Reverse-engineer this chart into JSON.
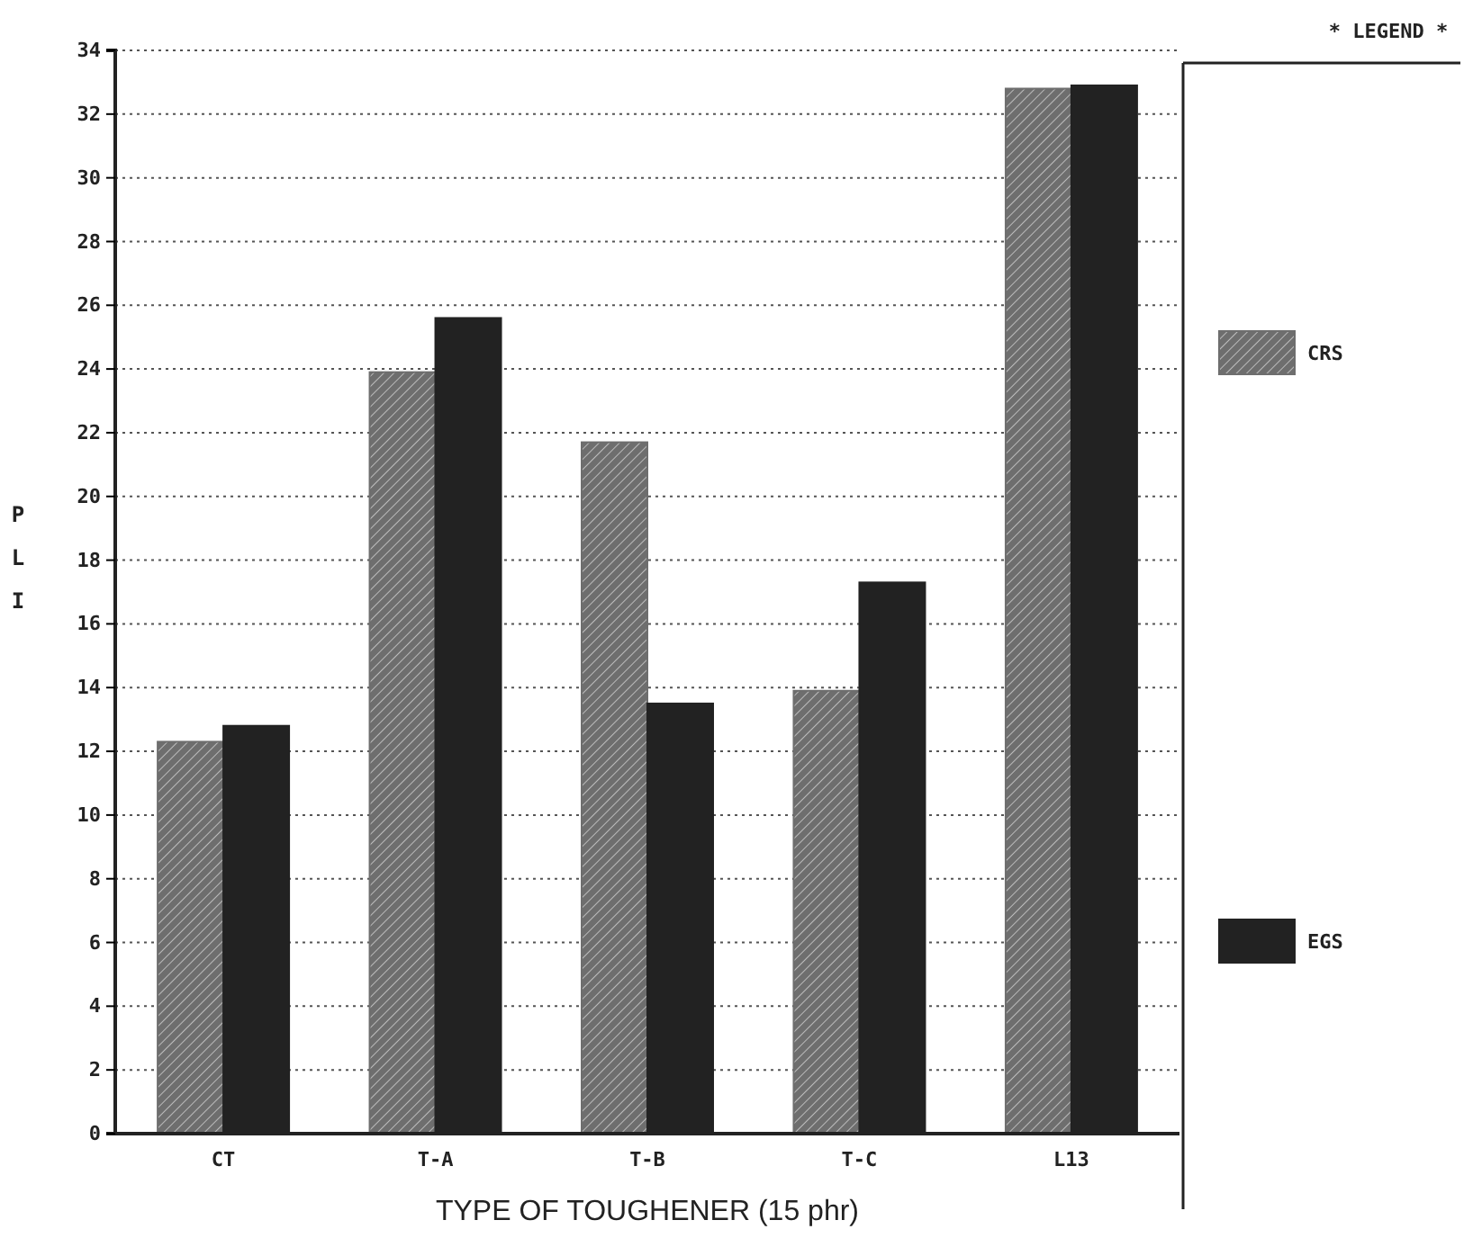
{
  "chart_data": {
    "type": "bar",
    "xlabel": "TYPE OF TOUGHENER (15 phr)",
    "ylabel": "P L I",
    "legend_title": "* LEGEND *",
    "categories": [
      "CT",
      "T-A",
      "T-B",
      "T-C",
      "L13"
    ],
    "series": [
      {
        "name": "CRS",
        "color": "#6e6e6e",
        "values": [
          12.3,
          23.9,
          21.7,
          13.9,
          32.8
        ]
      },
      {
        "name": "EGS",
        "color": "#222222",
        "values": [
          12.8,
          25.6,
          13.5,
          17.3,
          32.9
        ]
      }
    ],
    "ylim": [
      0,
      34
    ],
    "yticks": [
      0,
      2,
      4,
      6,
      8,
      10,
      12,
      14,
      16,
      18,
      20,
      22,
      24,
      26,
      28,
      30,
      32,
      34
    ],
    "grid": "y",
    "legend": "right"
  }
}
